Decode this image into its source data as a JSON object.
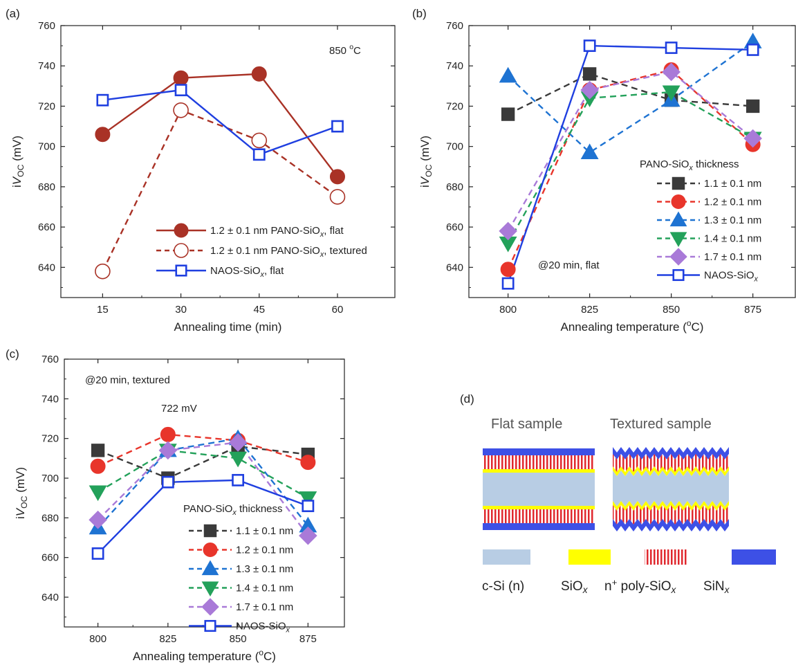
{
  "chart_data": [
    {
      "panel": "(a)",
      "type": "line",
      "xlabel": "Annealing time (min)",
      "ylabel": "iV_OC (mV)",
      "x": [
        15,
        30,
        45,
        60
      ],
      "xticks": [
        "15",
        "30",
        "45",
        "60"
      ],
      "xlim": [
        7,
        71
      ],
      "ylim": [
        625,
        760
      ],
      "yticks": [
        640,
        660,
        680,
        700,
        720,
        740,
        760
      ],
      "annotation": "850 oC",
      "legend_position": "bottom-right",
      "series": [
        {
          "name": "1.2 ± 0.1 nm PANO-SiOx, flat",
          "values": [
            706,
            734,
            736,
            685
          ],
          "color": "#a93226",
          "marker": "circle",
          "filled": true,
          "dashed": false
        },
        {
          "name": "1.2 ± 0.1 nm PANO-SiOx, textured",
          "values": [
            638,
            718,
            703,
            675
          ],
          "color": "#a93226",
          "marker": "circle",
          "filled": false,
          "dashed": true
        },
        {
          "name": "NAOS-SiOx, flat",
          "values": [
            723,
            728,
            696,
            710
          ],
          "color": "#1f3fe0",
          "marker": "square",
          "filled": false,
          "dashed": false
        }
      ]
    },
    {
      "panel": "(b)",
      "type": "line",
      "xlabel": "Annealing temperature (oC)",
      "ylabel": "iV_OC (mV)",
      "x": [
        800,
        825,
        850,
        875
      ],
      "xticks": [
        "800",
        "825",
        "850",
        "875"
      ],
      "xlim": [
        788,
        888
      ],
      "ylim": [
        625,
        760
      ],
      "yticks": [
        640,
        660,
        680,
        700,
        720,
        740,
        760
      ],
      "annotation": "@20 min, flat",
      "legend_title": "PANO-SiOx thickness",
      "legend_position": "bottom-right",
      "series": [
        {
          "name": "1.1 ± 0.1 nm",
          "values": [
            716,
            736,
            723,
            720
          ],
          "color": "#3a3a3a",
          "marker": "square",
          "filled": true,
          "dashed": true
        },
        {
          "name": "1.2 ± 0.1 nm",
          "values": [
            639,
            728,
            738,
            701
          ],
          "color": "#e8352b",
          "marker": "circle",
          "filled": true,
          "dashed": true
        },
        {
          "name": "1.3 ± 0.1 nm",
          "values": [
            735,
            697,
            723,
            752
          ],
          "color": "#1e73d2",
          "marker": "triangle-up",
          "filled": true,
          "dashed": true
        },
        {
          "name": "1.4 ± 0.1 nm",
          "values": [
            652,
            724,
            727,
            704
          ],
          "color": "#23a15a",
          "marker": "triangle-down",
          "filled": true,
          "dashed": true
        },
        {
          "name": "1.7 ± 0.1 nm",
          "values": [
            658,
            728,
            737,
            704
          ],
          "color": "#a97ad8",
          "marker": "diamond",
          "filled": true,
          "dashed": true
        },
        {
          "name": "NAOS-SiOx",
          "values": [
            632,
            750,
            749,
            748
          ],
          "color": "#1f3fe0",
          "marker": "square",
          "filled": false,
          "dashed": false
        }
      ]
    },
    {
      "panel": "(c)",
      "type": "line",
      "xlabel": "Annealing temperature (oC)",
      "ylabel": "iV_OC (mV)",
      "x": [
        800,
        825,
        850,
        875
      ],
      "xticks": [
        "800",
        "825",
        "850",
        "875"
      ],
      "xlim": [
        788,
        888
      ],
      "ylim": [
        625,
        760
      ],
      "yticks": [
        640,
        660,
        680,
        700,
        720,
        740,
        760
      ],
      "annotation": "@20 min, textured",
      "annotation2": "722 mV",
      "legend_title": "PANO-SiOx thickness",
      "legend_position": "bottom-right",
      "series": [
        {
          "name": "1.1 ± 0.1 nm",
          "values": [
            714,
            700,
            716,
            712
          ],
          "color": "#3a3a3a",
          "marker": "square",
          "filled": true,
          "dashed": true
        },
        {
          "name": "1.2 ± 0.1 nm",
          "values": [
            706,
            722,
            719,
            708
          ],
          "color": "#e8352b",
          "marker": "circle",
          "filled": true,
          "dashed": true
        },
        {
          "name": "1.3 ± 0.1 nm",
          "values": [
            675,
            714,
            720,
            676
          ],
          "color": "#1e73d2",
          "marker": "triangle-up",
          "filled": true,
          "dashed": true
        },
        {
          "name": "1.4 ± 0.1 nm",
          "values": [
            693,
            714,
            710,
            690
          ],
          "color": "#23a15a",
          "marker": "triangle-down",
          "filled": true,
          "dashed": true
        },
        {
          "name": "1.7 ± 0.1 nm",
          "values": [
            679,
            714,
            718,
            671
          ],
          "color": "#a97ad8",
          "marker": "diamond",
          "filled": true,
          "dashed": true
        },
        {
          "name": "NAOS-SiOx",
          "values": [
            662,
            698,
            699,
            686
          ],
          "color": "#1f3fe0",
          "marker": "square",
          "filled": false,
          "dashed": false
        }
      ]
    }
  ],
  "diagram": {
    "panel": "(d)",
    "flat_title": "Flat sample",
    "textured_title": "Textured sample",
    "legend": [
      {
        "label": "c-Si (n)",
        "color": "#b8cde4"
      },
      {
        "label": "SiOx",
        "color": "#ffff00"
      },
      {
        "label": "n+ poly-SiOx",
        "color": "#e0282e"
      },
      {
        "label": "SiNx",
        "color": "#3d50e6"
      }
    ]
  }
}
